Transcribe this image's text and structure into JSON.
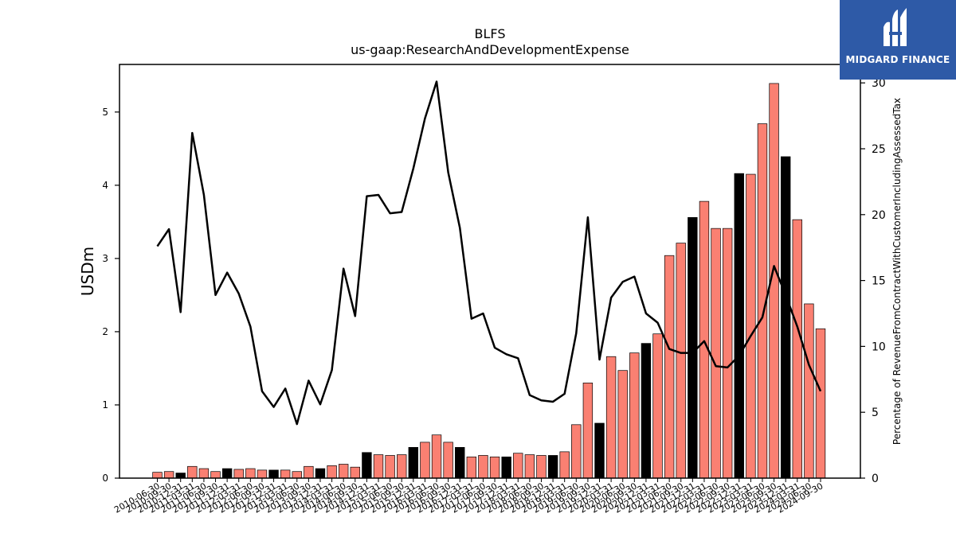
{
  "brand": {
    "name": "MIDGARD FINANCE",
    "color": "#2e5aa7"
  },
  "chart_data": {
    "type": "bar",
    "title": "BLFS",
    "subtitle": "us-gaap:ResearchAndDevelopmentExpense",
    "ylabel": "USDm",
    "y2label": "Percentage of RevenueFromContractWithCustomerIncludingAssessedTax",
    "ylim": [
      0,
      5.65
    ],
    "y2lim": [
      0,
      31.4
    ],
    "yticks": [
      "0",
      "1",
      "2",
      "3",
      "4",
      "5"
    ],
    "y2ticks": [
      "0",
      "5",
      "10",
      "15",
      "20",
      "25",
      "30"
    ],
    "colors": {
      "quarter": "#fa8072",
      "fiscal_year_end": "#000000",
      "line": "#000000"
    },
    "categories": [
      "2010-06-30",
      "2010-09-30",
      "2010-12-31",
      "2011-03-31",
      "2011-06-30",
      "2011-09-30",
      "2011-12-31",
      "2012-03-31",
      "2012-06-30",
      "2012-09-30",
      "2012-12-31",
      "2013-03-31",
      "2013-06-30",
      "2013-09-30",
      "2013-12-31",
      "2014-03-31",
      "2014-06-30",
      "2014-09-30",
      "2014-12-31",
      "2015-03-31",
      "2015-06-30",
      "2015-09-30",
      "2015-12-31",
      "2016-03-31",
      "2016-06-30",
      "2016-09-30",
      "2016-12-31",
      "2017-03-31",
      "2017-06-30",
      "2017-09-30",
      "2017-12-31",
      "2018-03-31",
      "2018-06-30",
      "2018-09-30",
      "2018-12-31",
      "2019-03-31",
      "2019-06-30",
      "2019-09-30",
      "2019-12-31",
      "2020-03-31",
      "2020-06-30",
      "2020-09-30",
      "2020-12-31",
      "2021-03-31",
      "2021-06-30",
      "2021-09-30",
      "2021-12-31",
      "2022-03-31",
      "2022-06-30",
      "2022-09-30",
      "2022-12-31",
      "2023-03-31",
      "2023-06-30",
      "2023-09-30",
      "2023-12-31",
      "2024-03-31",
      "2024-06-30",
      "2024-09-30"
    ],
    "series": [
      {
        "values": [
          0.08,
          0.09,
          0.07,
          0.16,
          0.13,
          0.09,
          0.13,
          0.12,
          0.13,
          0.11,
          0.11,
          0.11,
          0.09,
          0.16,
          0.13,
          0.17,
          0.19,
          0.15,
          0.35,
          0.32,
          0.31,
          0.32,
          0.42,
          0.49,
          0.59,
          0.49,
          0.42,
          0.29,
          0.31,
          0.29,
          0.29,
          0.34,
          0.32,
          0.31,
          0.31,
          0.36,
          0.73,
          1.3,
          0.75,
          1.66,
          1.47,
          1.71,
          1.84,
          1.97,
          3.04,
          3.21,
          3.56,
          3.78,
          3.41,
          3.41,
          4.16,
          4.15,
          4.84,
          5.39,
          4.39,
          3.53,
          2.38,
          2.04
        ],
        "fiscal_year_end": [
          false,
          false,
          true,
          false,
          false,
          false,
          true,
          false,
          false,
          false,
          true,
          false,
          false,
          false,
          true,
          false,
          false,
          false,
          true,
          false,
          false,
          false,
          true,
          false,
          false,
          false,
          true,
          false,
          false,
          false,
          true,
          false,
          false,
          false,
          true,
          false,
          false,
          false,
          true,
          false,
          false,
          false,
          true,
          false,
          false,
          false,
          true,
          false,
          false,
          false,
          true,
          false,
          false,
          false,
          true,
          false,
          false,
          false
        ]
      },
      {
        "axis": "right",
        "values": [
          17.6,
          18.9,
          12.6,
          26.2,
          21.5,
          13.9,
          15.6,
          14.0,
          11.5,
          6.6,
          5.4,
          6.8,
          4.1,
          7.4,
          5.6,
          8.2,
          15.9,
          12.3,
          21.4,
          21.5,
          20.1,
          20.2,
          23.5,
          27.3,
          30.1,
          23.2,
          19.0,
          12.1,
          12.5,
          9.9,
          9.4,
          9.1,
          6.3,
          5.9,
          5.8,
          6.4,
          11.0,
          19.8,
          9.0,
          13.7,
          14.9,
          15.3,
          12.5,
          11.8,
          9.8,
          9.5,
          9.5,
          10.4,
          8.5,
          8.4,
          9.3,
          10.8,
          12.2,
          16.1,
          13.9,
          11.5,
          8.6,
          6.6
        ]
      }
    ]
  }
}
